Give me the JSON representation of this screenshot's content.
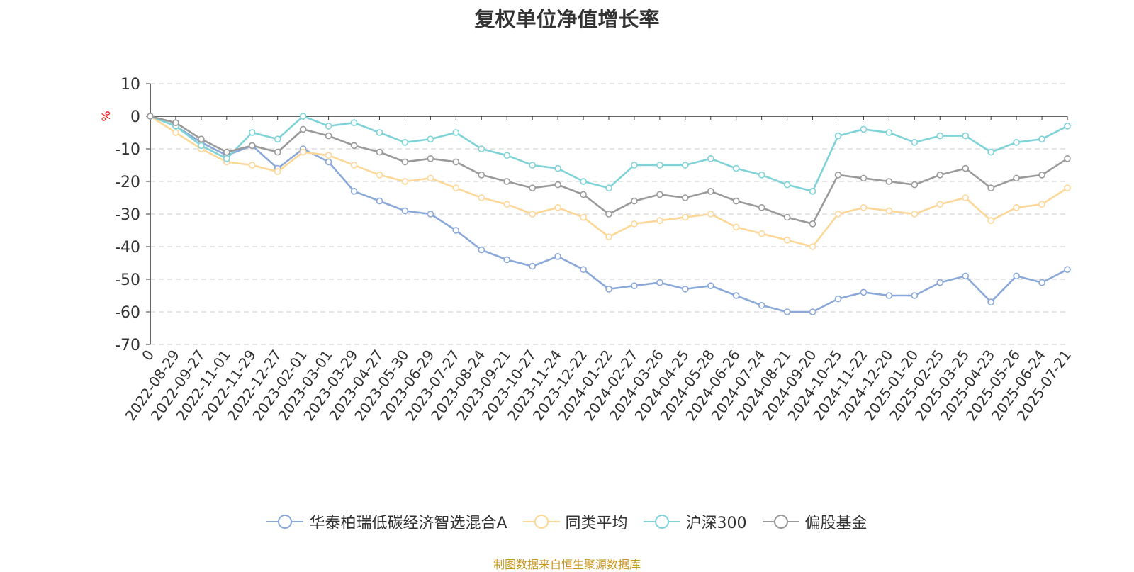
{
  "chart_data": {
    "type": "line",
    "title": "复权单位净值增长率",
    "ylabel": "%",
    "ylim": [
      -70,
      10
    ],
    "yticks": [
      "10",
      "0",
      "-10",
      "-20",
      "-30",
      "-40",
      "-50",
      "-60",
      "-70"
    ],
    "grid": true,
    "legend_position": "bottom",
    "categories": [
      "0",
      "2022-08-29",
      "2022-09-27",
      "2022-11-01",
      "2022-11-29",
      "2022-12-27",
      "2023-02-01",
      "2023-03-01",
      "2023-03-29",
      "2023-04-27",
      "2023-05-30",
      "2023-06-29",
      "2023-07-27",
      "2023-08-24",
      "2023-09-21",
      "2023-10-27",
      "2023-11-24",
      "2023-12-22",
      "2024-01-22",
      "2024-02-27",
      "2024-03-26",
      "2024-04-25",
      "2024-05-28",
      "2024-06-26",
      "2024-07-24",
      "2024-08-21",
      "2024-09-20",
      "2024-10-25",
      "2024-11-22",
      "2024-12-20",
      "2025-01-20",
      "2025-02-25",
      "2025-03-25",
      "2025-04-23",
      "2025-05-26",
      "2025-06-24",
      "2025-07-21"
    ],
    "series": [
      {
        "name": "华泰柏瑞低碳经济智选混合A",
        "color": "#8aa8d8",
        "values": [
          0,
          -3,
          -8,
          -12,
          -9,
          -16,
          -10,
          -14,
          -23,
          -26,
          -29,
          -30,
          -35,
          -41,
          -44,
          -46,
          -43,
          -47,
          -53,
          -52,
          -51,
          -53,
          -52,
          -55,
          -58,
          -60,
          -60,
          -56,
          -54,
          -55,
          -55,
          -51,
          -49,
          -57,
          -49,
          -51,
          -47
        ]
      },
      {
        "name": "同类平均",
        "color": "#fcd797",
        "values": [
          0,
          -5,
          -10,
          -14,
          -15,
          -17,
          -11,
          -12,
          -15,
          -18,
          -20,
          -19,
          -22,
          -25,
          -27,
          -30,
          -28,
          -31,
          -37,
          -33,
          -32,
          -31,
          -30,
          -34,
          -36,
          -38,
          -40,
          -30,
          -28,
          -29,
          -30,
          -27,
          -25,
          -32,
          -28,
          -27,
          -22
        ]
      },
      {
        "name": "沪深300",
        "color": "#7fd3d7",
        "values": [
          0,
          -3,
          -9,
          -13,
          -5,
          -7,
          0,
          -3,
          -2,
          -5,
          -8,
          -7,
          -5,
          -10,
          -12,
          -15,
          -16,
          -20,
          -22,
          -15,
          -15,
          -15,
          -13,
          -16,
          -18,
          -21,
          -23,
          -6,
          -4,
          -5,
          -8,
          -6,
          -6,
          -11,
          -8,
          -7,
          -3
        ]
      },
      {
        "name": "偏股基金",
        "color": "#9a9a9a",
        "values": [
          0,
          -2,
          -7,
          -11,
          -9,
          -11,
          -4,
          -6,
          -9,
          -11,
          -14,
          -13,
          -14,
          -18,
          -20,
          -22,
          -21,
          -24,
          -30,
          -26,
          -24,
          -25,
          -23,
          -26,
          -28,
          -31,
          -33,
          -18,
          -19,
          -20,
          -21,
          -18,
          -16,
          -22,
          -19,
          -18,
          -13
        ]
      }
    ]
  },
  "footer": {
    "source": "制图数据来自恒生聚源数据库"
  }
}
